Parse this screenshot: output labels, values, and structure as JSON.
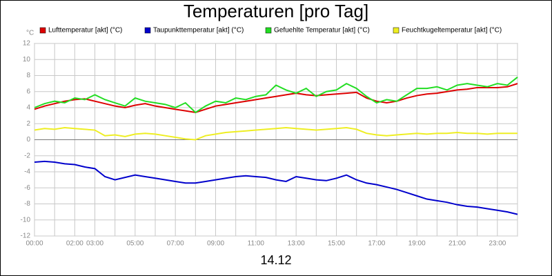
{
  "chart_data": {
    "type": "line",
    "title": "Temperaturen [pro Tag]",
    "y_unit": "°C",
    "x_label": "14.12",
    "x": [
      0,
      0.5,
      1,
      1.5,
      2,
      2.5,
      3,
      3.5,
      4,
      4.5,
      5,
      5.5,
      6,
      6.5,
      7,
      7.5,
      8,
      8.5,
      9,
      9.5,
      10,
      10.5,
      11,
      11.5,
      12,
      12.5,
      13,
      13.5,
      14,
      14.5,
      15,
      15.5,
      16,
      16.5,
      17,
      17.5,
      18,
      18.5,
      19,
      19.5,
      20,
      20.5,
      21,
      21.5,
      22,
      22.5,
      23,
      23.5,
      24
    ],
    "series": [
      {
        "name": "Lufttemperatur [akt] (°C)",
        "color": "#dd0000",
        "values": [
          3.8,
          4.2,
          4.5,
          4.8,
          5.0,
          5.1,
          4.8,
          4.5,
          4.2,
          4.0,
          4.3,
          4.5,
          4.2,
          4.0,
          3.8,
          3.6,
          3.4,
          3.8,
          4.2,
          4.4,
          4.6,
          4.8,
          5.0,
          5.2,
          5.4,
          5.6,
          5.8,
          5.6,
          5.5,
          5.6,
          5.7,
          5.8,
          5.9,
          5.2,
          4.8,
          4.6,
          4.8,
          5.2,
          5.5,
          5.7,
          5.8,
          6.0,
          6.2,
          6.3,
          6.5,
          6.5,
          6.5,
          6.6,
          7.0
        ]
      },
      {
        "name": "Taupunkttemperatur [akt] (°C)",
        "color": "#0000cc",
        "values": [
          -2.8,
          -2.7,
          -2.8,
          -3.0,
          -3.1,
          -3.4,
          -3.6,
          -4.6,
          -5.0,
          -4.7,
          -4.4,
          -4.6,
          -4.8,
          -5.0,
          -5.2,
          -5.4,
          -5.4,
          -5.2,
          -5.0,
          -4.8,
          -4.6,
          -4.5,
          -4.6,
          -4.7,
          -5.0,
          -5.2,
          -4.6,
          -4.8,
          -5.0,
          -5.1,
          -4.8,
          -4.4,
          -5.0,
          -5.4,
          -5.6,
          -5.9,
          -6.2,
          -6.6,
          -7.0,
          -7.4,
          -7.6,
          -7.8,
          -8.1,
          -8.3,
          -8.4,
          -8.6,
          -8.8,
          -9.0,
          -9.3
        ]
      },
      {
        "name": "Gefuehlte Temperatur [akt] (°C)",
        "color": "#22dd22",
        "values": [
          4.0,
          4.5,
          4.8,
          4.6,
          5.2,
          5.0,
          5.6,
          5.0,
          4.6,
          4.2,
          5.2,
          4.8,
          4.6,
          4.4,
          4.0,
          4.6,
          3.4,
          4.2,
          4.8,
          4.6,
          5.2,
          5.0,
          5.4,
          5.6,
          6.8,
          6.2,
          5.8,
          6.4,
          5.4,
          6.0,
          6.2,
          7.0,
          6.4,
          5.4,
          4.6,
          5.0,
          4.8,
          5.6,
          6.4,
          6.4,
          6.6,
          6.2,
          6.8,
          7.0,
          6.8,
          6.6,
          7.0,
          6.8,
          7.8
        ]
      },
      {
        "name": "Feuchtkugeltemperatur [akt] (°C)",
        "color": "#eeee22",
        "values": [
          1.2,
          1.4,
          1.3,
          1.5,
          1.4,
          1.3,
          1.2,
          0.5,
          0.6,
          0.4,
          0.7,
          0.8,
          0.7,
          0.5,
          0.3,
          0.1,
          0.0,
          0.5,
          0.7,
          0.9,
          1.0,
          1.1,
          1.2,
          1.3,
          1.4,
          1.5,
          1.4,
          1.3,
          1.2,
          1.3,
          1.4,
          1.5,
          1.3,
          0.8,
          0.6,
          0.5,
          0.6,
          0.7,
          0.8,
          0.7,
          0.8,
          0.8,
          0.9,
          0.8,
          0.8,
          0.7,
          0.8,
          0.8,
          0.8
        ]
      }
    ],
    "xlim": [
      0,
      24
    ],
    "xticks": [
      {
        "value": 0,
        "label": "00:00"
      },
      {
        "value": 1,
        "label": null
      },
      {
        "value": 2,
        "label": "02:00"
      },
      {
        "value": 3,
        "label": "03:00"
      },
      {
        "value": 4,
        "label": null
      },
      {
        "value": 5,
        "label": "05:00"
      },
      {
        "value": 6,
        "label": null
      },
      {
        "value": 7,
        "label": "07:00"
      },
      {
        "value": 8,
        "label": null
      },
      {
        "value": 9,
        "label": "09:00"
      },
      {
        "value": 10,
        "label": null
      },
      {
        "value": 11,
        "label": "11:00"
      },
      {
        "value": 12,
        "label": null
      },
      {
        "value": 13,
        "label": "13:00"
      },
      {
        "value": 14,
        "label": null
      },
      {
        "value": 15,
        "label": "15:00"
      },
      {
        "value": 16,
        "label": null
      },
      {
        "value": 17,
        "label": "17:00"
      },
      {
        "value": 18,
        "label": null
      },
      {
        "value": 19,
        "label": "19:00"
      },
      {
        "value": 20,
        "label": null
      },
      {
        "value": 21,
        "label": "21:00"
      },
      {
        "value": 22,
        "label": null
      },
      {
        "value": 23,
        "label": "23:00"
      },
      {
        "value": 24,
        "label": null
      }
    ],
    "ylim": [
      -12,
      12
    ],
    "yticks": [
      -12,
      -10,
      -8,
      -6,
      -4,
      -2,
      0,
      2,
      4,
      6,
      8,
      10,
      12
    ],
    "grid": true
  }
}
